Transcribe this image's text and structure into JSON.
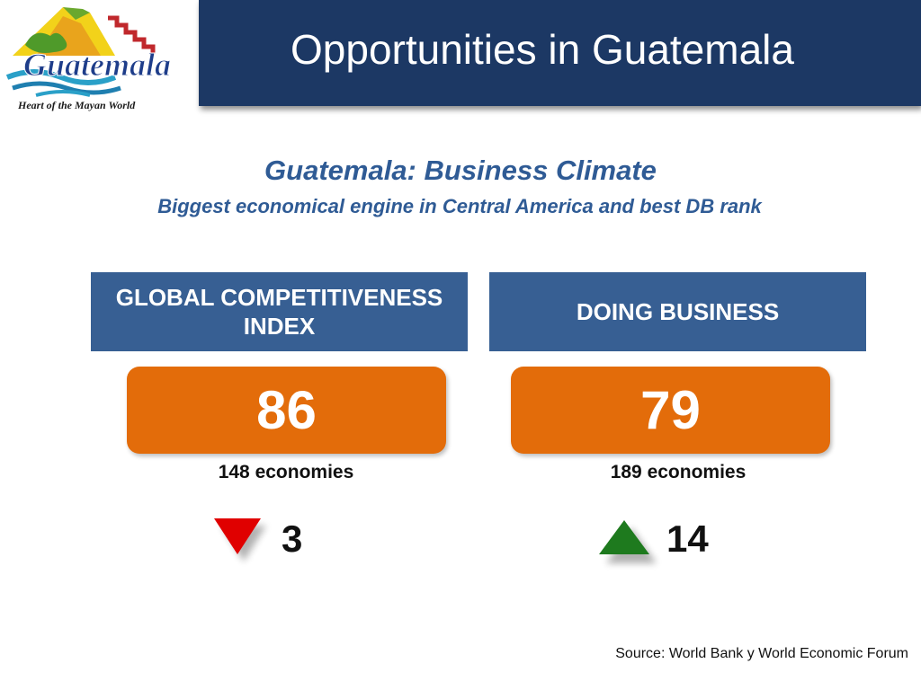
{
  "logo": {
    "wordmark": "Guatemala",
    "tagline": "Heart of the Mayan World"
  },
  "header": {
    "title": "Opportunities in Guatemala"
  },
  "headings": {
    "main": "Guatemala: Business Climate",
    "sub": "Biggest economical engine in Central America and best DB rank"
  },
  "panels": [
    {
      "title_lines": [
        "GLOBAL COMPETITIVENESS",
        "INDEX"
      ],
      "rank": "86",
      "economies": "148 economies",
      "trend_icon": "red-down-triangle-icon",
      "trend_color": "#e00000",
      "change": "3"
    },
    {
      "title_lines": [
        "DOING BUSINESS"
      ],
      "rank": "79",
      "economies": "189 economies",
      "trend_icon": "green-up-triangle-icon",
      "trend_color": "#1e7a1e",
      "change": "14"
    }
  ],
  "colors": {
    "title_bar": "#1c3864",
    "panel_header": "#375f93",
    "value_box": "#e36c0a",
    "heading_text": "#2f5b95"
  },
  "footer": {
    "source": "Source:  World Bank y World Economic Forum"
  }
}
